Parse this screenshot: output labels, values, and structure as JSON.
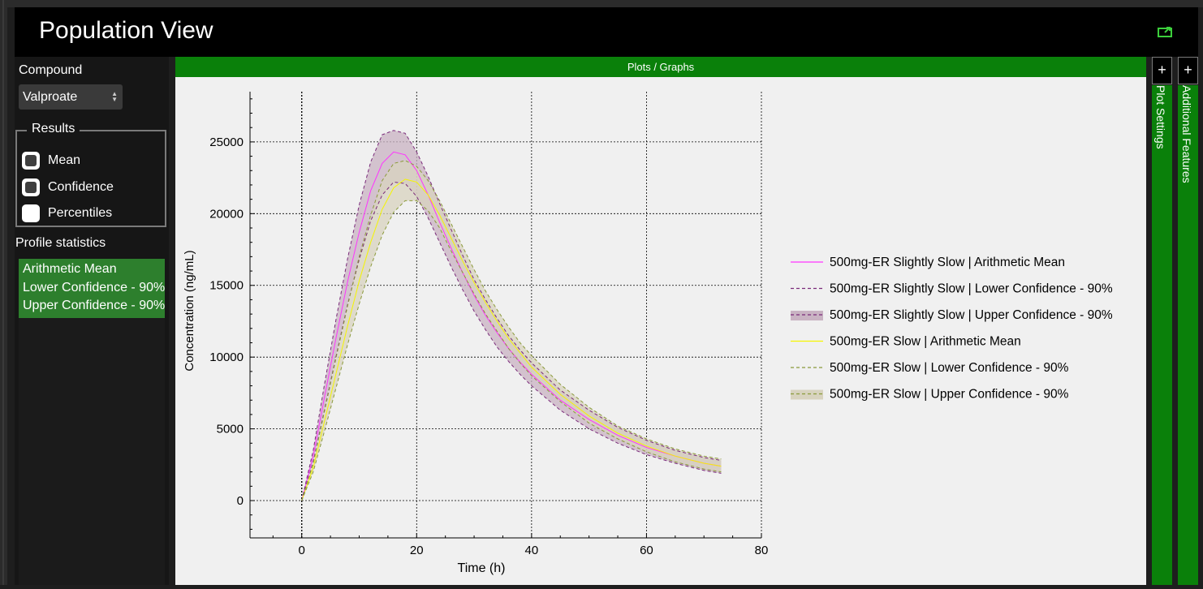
{
  "header": {
    "title": "Population View",
    "export_icon": "export-icon"
  },
  "left": {
    "compound_label": "Compound",
    "compound_value": "Valproate",
    "results_label": "Results",
    "checkboxes": [
      {
        "label": "Mean",
        "state": "unchecked-styled"
      },
      {
        "label": "Confidence",
        "state": "unchecked-styled"
      },
      {
        "label": "Percentiles",
        "state": "blank"
      }
    ],
    "profile_stats_label": "Profile statistics",
    "profile_stats": [
      "Arithmetic Mean",
      "Lower Confidence - 90%",
      "Upper Confidence - 90%"
    ]
  },
  "plots_title": "Plots / Graphs",
  "side": {
    "add_label": "+",
    "plot_settings": "Plot Settings",
    "additional_features": "Additional Features"
  },
  "colors": {
    "accent_green": "#0a800a",
    "selection_green": "#2d7f2d"
  },
  "chart_data": {
    "type": "line",
    "xlabel": "Time (h)",
    "ylabel": "Concentration (ng/mL)",
    "xlim": [
      -9,
      80
    ],
    "ylim": [
      -2600,
      28500
    ],
    "xticks": [
      0,
      20,
      40,
      60,
      80
    ],
    "yticks": [
      0,
      5000,
      10000,
      15000,
      20000,
      25000
    ],
    "grid": true,
    "legend_position": "right",
    "series": [
      {
        "name": "500mg-ER Slightly Slow | Arithmetic Mean",
        "color": "#ff33ff",
        "style": "solid",
        "x": [
          0,
          2,
          4,
          6,
          8,
          10,
          12,
          14,
          16,
          18,
          20,
          22,
          24,
          26,
          28,
          30,
          32,
          34,
          36,
          38,
          40,
          45,
          50,
          55,
          60,
          65,
          70,
          73
        ],
        "y": [
          0,
          3100,
          7300,
          11400,
          15300,
          18700,
          21600,
          23500,
          24300,
          24100,
          23000,
          21300,
          19400,
          17600,
          15900,
          14300,
          12900,
          11700,
          10600,
          9650,
          8800,
          7000,
          5650,
          4550,
          3700,
          3100,
          2600,
          2400
        ]
      },
      {
        "name": "500mg-ER Slightly Slow | Lower Confidence - 90%",
        "color": "#7a2a7a",
        "style": "dashed",
        "x": [
          0,
          2,
          4,
          6,
          8,
          10,
          12,
          14,
          16,
          18,
          20,
          22,
          24,
          26,
          28,
          30,
          32,
          34,
          36,
          38,
          40,
          45,
          50,
          55,
          60,
          65,
          70,
          73
        ],
        "y": [
          0,
          2700,
          6400,
          10100,
          13700,
          16800,
          19500,
          21300,
          22200,
          22100,
          21200,
          19700,
          18000,
          16300,
          14700,
          13200,
          11900,
          10700,
          9700,
          8800,
          8000,
          6300,
          5000,
          4000,
          3200,
          2600,
          2100,
          1900
        ]
      },
      {
        "name": "500mg-ER Slightly Slow | Upper Confidence - 90%",
        "color": "#7a2a7a",
        "style": "dashed",
        "band": true,
        "x": [
          0,
          2,
          4,
          6,
          8,
          10,
          12,
          14,
          16,
          18,
          20,
          22,
          24,
          26,
          28,
          30,
          32,
          34,
          36,
          38,
          40,
          45,
          50,
          55,
          60,
          65,
          70,
          73
        ],
        "y": [
          0,
          3500,
          8200,
          12700,
          16900,
          20600,
          23600,
          25500,
          25800,
          25600,
          24300,
          22600,
          20700,
          18900,
          17100,
          15400,
          14000,
          12700,
          11500,
          10500,
          9600,
          7700,
          6300,
          5100,
          4200,
          3500,
          3000,
          2800
        ]
      },
      {
        "name": "500mg-ER Slow | Arithmetic Mean",
        "color": "#f5f500",
        "style": "solid",
        "x": [
          0,
          2,
          4,
          6,
          8,
          10,
          12,
          14,
          16,
          18,
          20,
          22,
          24,
          26,
          28,
          30,
          32,
          34,
          36,
          38,
          40,
          45,
          50,
          55,
          60,
          65,
          70,
          73
        ],
        "y": [
          0,
          2300,
          5600,
          8900,
          12200,
          15300,
          18000,
          20300,
          21800,
          22400,
          22200,
          21300,
          19900,
          18300,
          16700,
          15200,
          13800,
          12500,
          11300,
          10300,
          9300,
          7400,
          5900,
          4700,
          3800,
          3100,
          2600,
          2400
        ]
      },
      {
        "name": "500mg-ER Slow | Lower Confidence - 90%",
        "color": "#8a9a3a",
        "style": "dashed",
        "x": [
          0,
          2,
          4,
          6,
          8,
          10,
          12,
          14,
          16,
          18,
          20,
          22,
          24,
          26,
          28,
          30,
          32,
          34,
          36,
          38,
          40,
          45,
          50,
          55,
          60,
          65,
          70,
          73
        ],
        "y": [
          0,
          2000,
          4900,
          7900,
          10900,
          13700,
          16300,
          18500,
          20100,
          20900,
          20900,
          20200,
          19000,
          17400,
          15900,
          14400,
          13000,
          11800,
          10600,
          9600,
          8700,
          6900,
          5400,
          4300,
          3400,
          2700,
          2200,
          2000
        ]
      },
      {
        "name": "500mg-ER Slow | Upper Confidence - 90%",
        "color": "#8a9a3a",
        "style": "dashed",
        "band": true,
        "x": [
          0,
          2,
          4,
          6,
          8,
          10,
          12,
          14,
          16,
          18,
          20,
          22,
          24,
          26,
          28,
          30,
          32,
          34,
          36,
          38,
          40,
          45,
          50,
          55,
          60,
          65,
          70,
          73
        ],
        "y": [
          0,
          2600,
          6300,
          10000,
          13600,
          17000,
          19900,
          22300,
          23500,
          23700,
          23300,
          22300,
          20900,
          19300,
          17700,
          16100,
          14600,
          13300,
          12100,
          11000,
          10100,
          8100,
          6500,
          5200,
          4300,
          3600,
          3100,
          2900
        ]
      }
    ],
    "bands": [
      {
        "lower": 1,
        "upper": 2,
        "fill": "#c9b3c3"
      },
      {
        "lower": 4,
        "upper": 5,
        "fill": "#d8d3bf"
      }
    ]
  }
}
